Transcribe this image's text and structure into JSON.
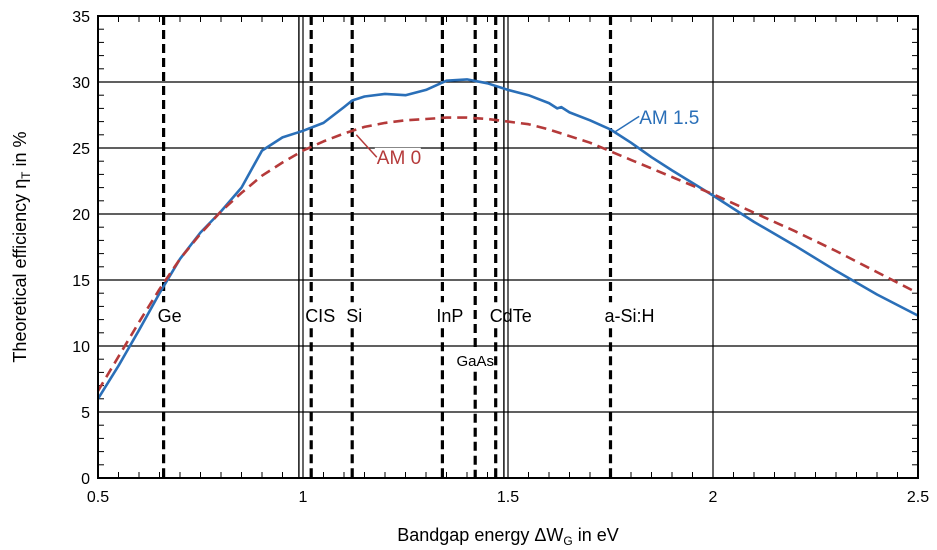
{
  "chart_data": {
    "type": "line",
    "title": "",
    "xlabel": "Bandgap energy ΔW",
    "xlabel_sub": "G",
    "xlabel_suffix": " in eV",
    "ylabel": "Theoretical efficiency η",
    "ylabel_sub": "T",
    "ylabel_suffix": " in %",
    "xlim": [
      0.5,
      2.5
    ],
    "ylim": [
      0,
      35
    ],
    "xticks": [
      0.5,
      1,
      1.5,
      2,
      2.5
    ],
    "xtick_labels": [
      "0.5",
      "1",
      "1.5",
      "2",
      "2.5"
    ],
    "yticks": [
      0,
      5,
      10,
      15,
      20,
      25,
      30,
      35
    ],
    "ytick_labels": [
      "0",
      "5",
      "10",
      "15",
      "20",
      "25",
      "30",
      "35"
    ],
    "grid": true,
    "series": [
      {
        "name": "AM 1.5",
        "color": "#2a6fb8",
        "style": "solid",
        "x": [
          0.5,
          0.55,
          0.6,
          0.65,
          0.7,
          0.75,
          0.8,
          0.85,
          0.9,
          0.95,
          1.0,
          1.05,
          1.1,
          1.12,
          1.15,
          1.2,
          1.25,
          1.3,
          1.35,
          1.4,
          1.45,
          1.5,
          1.55,
          1.6,
          1.62,
          1.63,
          1.65,
          1.7,
          1.75,
          1.8,
          1.85,
          1.9,
          2.0,
          2.1,
          2.2,
          2.3,
          2.4,
          2.5
        ],
        "y": [
          6.0,
          8.5,
          11.2,
          14.0,
          16.6,
          18.6,
          20.2,
          22.0,
          24.8,
          25.8,
          26.3,
          26.9,
          28.1,
          28.6,
          28.9,
          29.1,
          29.0,
          29.4,
          30.1,
          30.2,
          29.9,
          29.4,
          29.0,
          28.4,
          28.0,
          28.1,
          27.7,
          27.1,
          26.4,
          25.4,
          24.3,
          23.3,
          21.4,
          19.4,
          17.6,
          15.7,
          13.9,
          12.3
        ]
      },
      {
        "name": "AM 0",
        "color": "#b53a3a",
        "style": "dashed",
        "x": [
          0.5,
          0.55,
          0.6,
          0.65,
          0.7,
          0.75,
          0.8,
          0.85,
          0.9,
          0.95,
          1.0,
          1.05,
          1.1,
          1.15,
          1.2,
          1.25,
          1.3,
          1.35,
          1.4,
          1.45,
          1.5,
          1.55,
          1.6,
          1.7,
          1.8,
          1.9,
          2.0,
          2.1,
          2.2,
          2.3,
          2.4,
          2.5
        ],
        "y": [
          6.6,
          9.2,
          11.8,
          14.3,
          16.6,
          18.5,
          20.2,
          21.6,
          22.9,
          23.9,
          24.8,
          25.5,
          26.1,
          26.6,
          26.9,
          27.1,
          27.2,
          27.3,
          27.3,
          27.2,
          27.0,
          26.8,
          26.4,
          25.4,
          24.1,
          22.8,
          21.5,
          20.1,
          18.7,
          17.2,
          15.6,
          14.0
        ]
      }
    ],
    "series_labels": [
      {
        "text": "AM 1.5",
        "x": 1.82,
        "y": 26.8,
        "color": "#2a6fb8"
      },
      {
        "text": "AM 0",
        "x": 1.18,
        "y": 23.8,
        "color": "#b53a3a"
      }
    ],
    "solid_markers": [
      0.99,
      1.49
    ],
    "materials": [
      {
        "label": "Ge",
        "x": 0.66,
        "label_y": 11.8
      },
      {
        "label": "CIS",
        "x": 1.02,
        "label_y": 11.8
      },
      {
        "label": "Si",
        "x": 1.12,
        "label_y": 11.8
      },
      {
        "label": "InP",
        "x": 1.34,
        "label_y": 11.8
      },
      {
        "label": "GaAs",
        "x": 1.42,
        "label_y": 8.5,
        "small": true
      },
      {
        "label": "CdTe",
        "x": 1.47,
        "label_y": 11.8
      },
      {
        "label": "a-Si:H",
        "x": 1.75,
        "label_y": 11.8
      }
    ]
  }
}
